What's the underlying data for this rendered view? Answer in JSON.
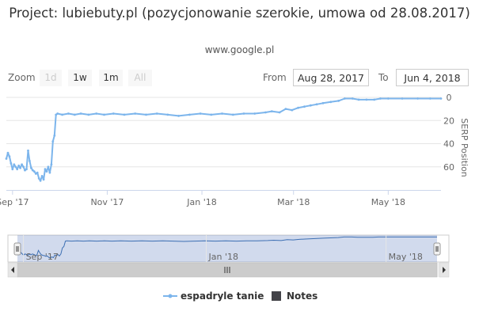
{
  "title": "Project: lubiebuty.pl (pozycjonowanie szerokie, umowa od 28.08.2017)",
  "subtitle": "www.google.pl",
  "range_selector": {
    "zoom_label": "Zoom",
    "buttons": [
      {
        "label": "1d",
        "enabled": false
      },
      {
        "label": "1w",
        "enabled": true
      },
      {
        "label": "1m",
        "enabled": true
      },
      {
        "label": "All",
        "enabled": false
      }
    ],
    "from_label": "From",
    "from_value": "Aug 28, 2017",
    "to_label": "To",
    "to_value": "Jun 4, 2018"
  },
  "colors": {
    "series": "#7cb5ec",
    "grid": "#e6e6e6",
    "navigator_mask": "rgba(102,133,194,0.3)",
    "scrollbar": "#cccccc"
  },
  "chart_data": {
    "type": "line",
    "x_range": [
      "2017-08-28",
      "2018-06-04"
    ],
    "ylabel": "SERP Position",
    "y_axis_side": "right",
    "y_reversed": true,
    "ylim": [
      0,
      80
    ],
    "y_ticks": [
      0,
      20,
      40,
      60
    ],
    "x_ticks": [
      {
        "date": "2017-09-01",
        "label": "Sep '17"
      },
      {
        "date": "2017-11-01",
        "label": "Nov '17"
      },
      {
        "date": "2018-01-01",
        "label": "Jan '18"
      },
      {
        "date": "2018-03-01",
        "label": "Mar '18"
      },
      {
        "date": "2018-05-01",
        "label": "May '18"
      }
    ],
    "navigator_ticks": [
      {
        "date": "2017-09-01",
        "label": "Sep '17"
      },
      {
        "date": "2018-01-01",
        "label": "Jan '18"
      },
      {
        "date": "2018-05-01",
        "label": "May '18"
      }
    ],
    "series": [
      {
        "name": "espadryle tanie",
        "points": [
          [
            "2017-08-28",
            53
          ],
          [
            "2017-08-29",
            48
          ],
          [
            "2017-08-30",
            51
          ],
          [
            "2017-08-31",
            57
          ],
          [
            "2017-09-01",
            62
          ],
          [
            "2017-09-02",
            58
          ],
          [
            "2017-09-03",
            60
          ],
          [
            "2017-09-04",
            62
          ],
          [
            "2017-09-05",
            59
          ],
          [
            "2017-09-06",
            61
          ],
          [
            "2017-09-07",
            58
          ],
          [
            "2017-09-08",
            60
          ],
          [
            "2017-09-09",
            63
          ],
          [
            "2017-09-10",
            62
          ],
          [
            "2017-09-11",
            46
          ],
          [
            "2017-09-12",
            55
          ],
          [
            "2017-09-13",
            61
          ],
          [
            "2017-09-14",
            63
          ],
          [
            "2017-09-15",
            64
          ],
          [
            "2017-09-16",
            66
          ],
          [
            "2017-09-17",
            65
          ],
          [
            "2017-09-18",
            70
          ],
          [
            "2017-09-19",
            72
          ],
          [
            "2017-09-20",
            68
          ],
          [
            "2017-09-21",
            71
          ],
          [
            "2017-09-22",
            62
          ],
          [
            "2017-09-23",
            64
          ],
          [
            "2017-09-24",
            60
          ],
          [
            "2017-09-25",
            65
          ],
          [
            "2017-09-26",
            58
          ],
          [
            "2017-09-27",
            38
          ],
          [
            "2017-09-28",
            33
          ],
          [
            "2017-09-29",
            15
          ],
          [
            "2017-09-30",
            14
          ],
          [
            "2017-10-03",
            15
          ],
          [
            "2017-10-07",
            14
          ],
          [
            "2017-10-11",
            15
          ],
          [
            "2017-10-15",
            14
          ],
          [
            "2017-10-20",
            15
          ],
          [
            "2017-10-25",
            14
          ],
          [
            "2017-10-30",
            15
          ],
          [
            "2017-11-05",
            14
          ],
          [
            "2017-11-12",
            15
          ],
          [
            "2017-11-19",
            14
          ],
          [
            "2017-11-26",
            15
          ],
          [
            "2017-12-03",
            14
          ],
          [
            "2017-12-10",
            15
          ],
          [
            "2017-12-17",
            16
          ],
          [
            "2017-12-24",
            15
          ],
          [
            "2017-12-31",
            14
          ],
          [
            "2018-01-07",
            15
          ],
          [
            "2018-01-14",
            14
          ],
          [
            "2018-01-21",
            15
          ],
          [
            "2018-01-28",
            14
          ],
          [
            "2018-02-04",
            14
          ],
          [
            "2018-02-11",
            13
          ],
          [
            "2018-02-15",
            12
          ],
          [
            "2018-02-20",
            13
          ],
          [
            "2018-02-24",
            10
          ],
          [
            "2018-02-28",
            11
          ],
          [
            "2018-03-04",
            9
          ],
          [
            "2018-03-08",
            8
          ],
          [
            "2018-03-12",
            7
          ],
          [
            "2018-03-16",
            6
          ],
          [
            "2018-03-20",
            5
          ],
          [
            "2018-03-25",
            4
          ],
          [
            "2018-03-30",
            3
          ],
          [
            "2018-04-03",
            1
          ],
          [
            "2018-04-08",
            1
          ],
          [
            "2018-04-12",
            2
          ],
          [
            "2018-04-17",
            2
          ],
          [
            "2018-04-22",
            2
          ],
          [
            "2018-04-26",
            1
          ],
          [
            "2018-05-01",
            1
          ],
          [
            "2018-05-10",
            1
          ],
          [
            "2018-05-20",
            1
          ],
          [
            "2018-05-28",
            1
          ],
          [
            "2018-06-04",
            1
          ]
        ]
      }
    ],
    "legend": [
      {
        "label": "espadryle tanie",
        "symbol": "line"
      },
      {
        "label": "Notes",
        "symbol": "square"
      }
    ]
  }
}
